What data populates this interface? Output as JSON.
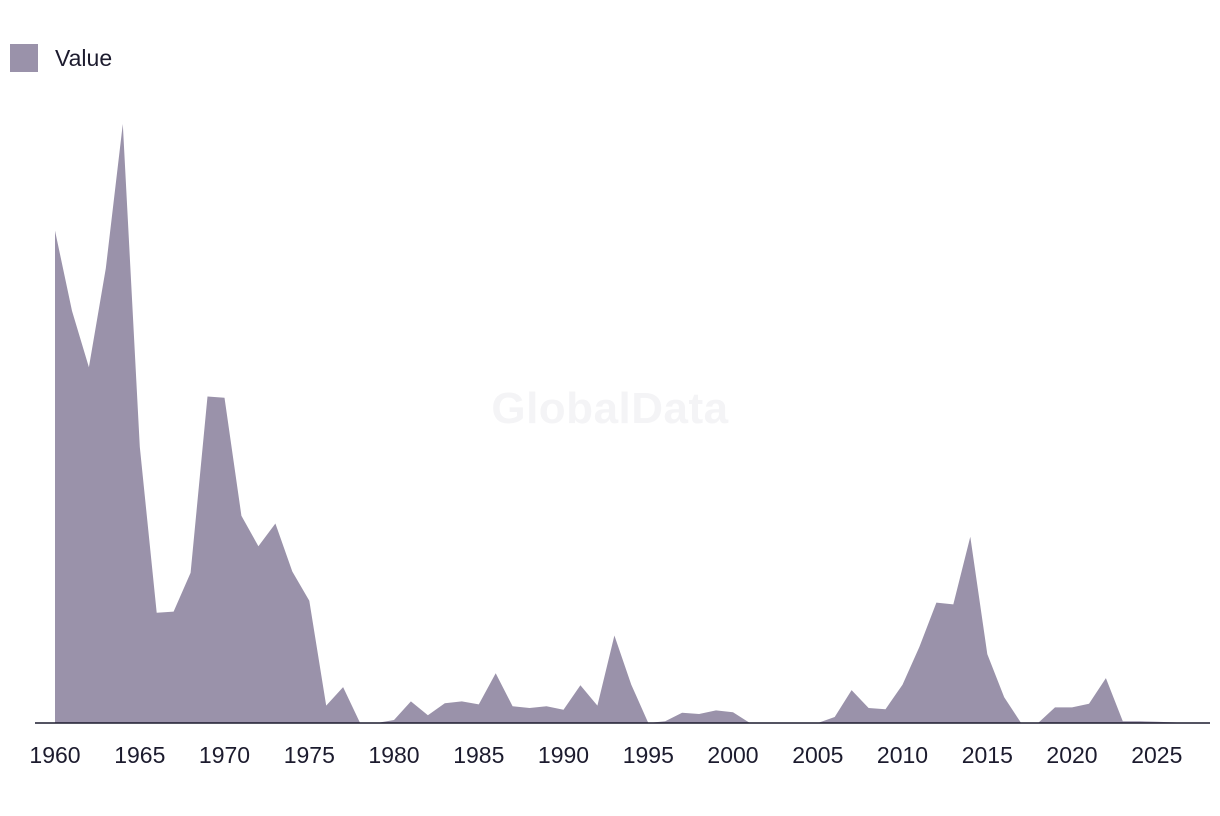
{
  "watermark": "GlobalData",
  "chart_data": {
    "type": "area",
    "color": "#9a92aa",
    "axis_color": "#1c1b2e",
    "legend": {
      "label": "Value",
      "placement": "top-left"
    },
    "title": "",
    "xlabel": "",
    "ylabel": "",
    "grid": false,
    "xlim": [
      1960,
      2027
    ],
    "ylim": [
      0,
      100
    ],
    "x_ticks": [
      1960,
      1965,
      1970,
      1975,
      1980,
      1985,
      1990,
      1995,
      2000,
      2005,
      2010,
      2015,
      2020,
      2025
    ],
    "series": [
      {
        "name": "Value",
        "x": [
          1960,
          1961,
          1962,
          1963,
          1964,
          1965,
          1966,
          1967,
          1968,
          1969,
          1970,
          1971,
          1972,
          1973,
          1974,
          1975,
          1976,
          1977,
          1978,
          1979,
          1980,
          1981,
          1982,
          1983,
          1984,
          1985,
          1986,
          1987,
          1988,
          1989,
          1990,
          1991,
          1992,
          1993,
          1994,
          1995,
          1996,
          1997,
          1998,
          1999,
          2000,
          2001,
          2002,
          2003,
          2004,
          2005,
          2006,
          2007,
          2008,
          2009,
          2010,
          2011,
          2012,
          2013,
          2014,
          2015,
          2016,
          2017,
          2018,
          2019,
          2020,
          2021,
          2022,
          2023,
          2024,
          2025,
          2026,
          2027
        ],
        "values": [
          82.2,
          68.8,
          59.4,
          75.9,
          100.0,
          46.1,
          18.4,
          18.6,
          25.1,
          54.5,
          54.3,
          34.6,
          29.5,
          33.3,
          25.3,
          20.4,
          2.9,
          6.0,
          0,
          0,
          0.5,
          3.6,
          1.3,
          3.3,
          3.6,
          3.1,
          8.3,
          2.8,
          2.5,
          2.8,
          2.2,
          6.3,
          2.9,
          14.6,
          6.4,
          0,
          0.3,
          1.7,
          1.5,
          2.1,
          1.8,
          0,
          0,
          0,
          0,
          0,
          1.0,
          5.5,
          2.5,
          2.3,
          6.4,
          12.7,
          20.1,
          19.8,
          31.1,
          11.5,
          4.3,
          0,
          0,
          2.6,
          2.6,
          3.2,
          7.5,
          0.3,
          0.3,
          0.2,
          0.1,
          0
        ]
      }
    ]
  }
}
